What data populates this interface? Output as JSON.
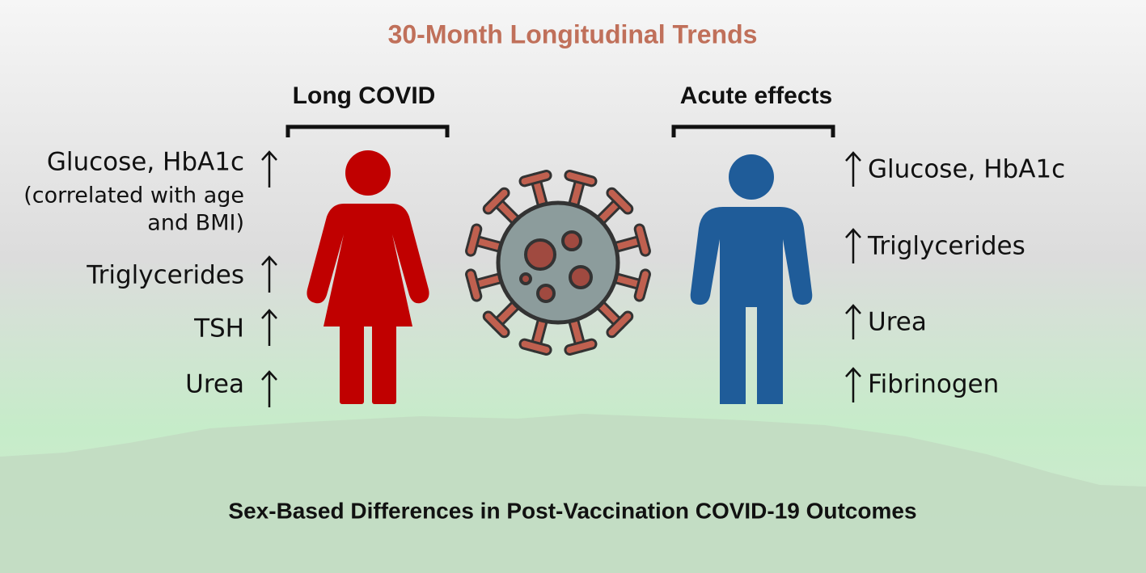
{
  "title": "30-Month Longitudinal Trends",
  "left": {
    "heading": "Long COVID",
    "items": [
      {
        "lines": [
          "Glucose, HbA1c",
          "(correlated with age",
          "and BMI)"
        ]
      },
      {
        "lines": [
          "Triglycerides"
        ]
      },
      {
        "lines": [
          "TSH"
        ]
      },
      {
        "lines": [
          "Urea"
        ]
      }
    ]
  },
  "right": {
    "heading": "Acute effects",
    "items": [
      {
        "lines": [
          "Glucose, HbA1c"
        ]
      },
      {
        "lines": [
          "Triglycerides"
        ]
      },
      {
        "lines": [
          "Urea"
        ]
      },
      {
        "lines": [
          "Fibrinogen"
        ]
      }
    ]
  },
  "footer": "Sex-Based Differences in Post-Vaccination COVID-19 Outcomes"
}
